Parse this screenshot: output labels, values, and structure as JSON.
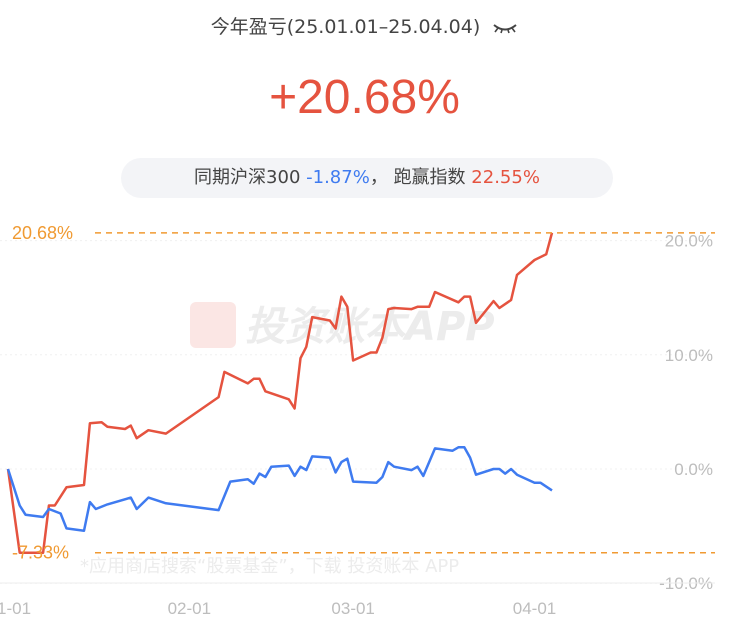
{
  "header": {
    "title": "今年盈亏(25.01.01–25.04.04)",
    "eye_icon": "eye-closed-icon",
    "return": "+20.68%"
  },
  "compare": {
    "label": "同期沪深300",
    "index_return": "-1.87%",
    "sep": "，",
    "beat_label": "跑赢指数",
    "beat_value": "22.55%"
  },
  "watermark": {
    "logo": "投资账本APP",
    "footer": "*应用商店搜索“股票基金”，下载 投资账本 APP"
  },
  "colors": {
    "portfolio": "#e5533f",
    "index": "#3f7bf0",
    "marker": "#f09a32",
    "axis_text": "#bdbdbd"
  },
  "chart_data": {
    "type": "line",
    "x_ticks": [
      "1-01",
      "02-01",
      "03-01",
      "04-01"
    ],
    "x_tick_dates": [
      "2025-01-01",
      "2025-02-01",
      "2025-03-01",
      "2025-04-01"
    ],
    "y_ticks": [
      "20.0%",
      "10.0%",
      "0.0%",
      "-10.0%"
    ],
    "y_tick_values": [
      20,
      10,
      0,
      -10
    ],
    "ylim": [
      -10,
      20
    ],
    "grid": true,
    "max_marker": {
      "label": "20.68%",
      "value": 20.68
    },
    "min_marker": {
      "label": "-7.33%",
      "value": -7.33
    },
    "series": [
      {
        "color": "#e5533f",
        "points": [
          [
            "2025-01-01",
            0
          ],
          [
            "2025-01-03",
            -7.33
          ],
          [
            "2025-01-07",
            -7.33
          ],
          [
            "2025-01-08",
            -3.2
          ],
          [
            "2025-01-09",
            -3.2
          ],
          [
            "2025-01-11",
            -1.6
          ],
          [
            "2025-01-14",
            -1.4
          ],
          [
            "2025-01-15",
            4.0
          ],
          [
            "2025-01-17",
            4.1
          ],
          [
            "2025-01-18",
            3.7
          ],
          [
            "2025-01-21",
            3.5
          ],
          [
            "2025-01-22",
            3.8
          ],
          [
            "2025-01-23",
            2.7
          ],
          [
            "2025-01-25",
            3.4
          ],
          [
            "2025-01-28",
            3.1
          ],
          [
            "2025-02-06",
            6.3
          ],
          [
            "2025-02-07",
            8.5
          ],
          [
            "2025-02-11",
            7.5
          ],
          [
            "2025-02-12",
            7.9
          ],
          [
            "2025-02-13",
            7.9
          ],
          [
            "2025-02-14",
            6.8
          ],
          [
            "2025-02-18",
            6.1
          ],
          [
            "2025-02-19",
            5.3
          ],
          [
            "2025-02-20",
            9.7
          ],
          [
            "2025-02-21",
            10.7
          ],
          [
            "2025-02-22",
            13.3
          ],
          [
            "2025-02-25",
            13.0
          ],
          [
            "2025-02-26",
            12.3
          ],
          [
            "2025-02-27",
            15.1
          ],
          [
            "2025-02-28",
            14.2
          ],
          [
            "2025-03-01",
            9.5
          ],
          [
            "2025-03-04",
            10.2
          ],
          [
            "2025-03-05",
            10.2
          ],
          [
            "2025-03-06",
            11.5
          ],
          [
            "2025-03-07",
            14.0
          ],
          [
            "2025-03-08",
            14.1
          ],
          [
            "2025-03-11",
            14.0
          ],
          [
            "2025-03-12",
            14.2
          ],
          [
            "2025-03-14",
            14.2
          ],
          [
            "2025-03-15",
            15.5
          ],
          [
            "2025-03-19",
            14.6
          ],
          [
            "2025-03-20",
            15.1
          ],
          [
            "2025-03-21",
            15.1
          ],
          [
            "2025-03-22",
            12.8
          ],
          [
            "2025-03-25",
            14.7
          ],
          [
            "2025-03-26",
            14.1
          ],
          [
            "2025-03-28",
            14.8
          ],
          [
            "2025-03-29",
            17.0
          ],
          [
            "2025-04-01",
            18.3
          ],
          [
            "2025-04-03",
            18.8
          ],
          [
            "2025-04-04",
            20.68
          ]
        ]
      },
      {
        "color": "#3f7bf0",
        "points": [
          [
            "2025-01-01",
            0
          ],
          [
            "2025-01-03",
            -3.2
          ],
          [
            "2025-01-04",
            -4.0
          ],
          [
            "2025-01-07",
            -4.2
          ],
          [
            "2025-01-08",
            -3.5
          ],
          [
            "2025-01-10",
            -3.9
          ],
          [
            "2025-01-11",
            -5.2
          ],
          [
            "2025-01-14",
            -5.4
          ],
          [
            "2025-01-15",
            -2.9
          ],
          [
            "2025-01-16",
            -3.5
          ],
          [
            "2025-01-18",
            -3.1
          ],
          [
            "2025-01-22",
            -2.5
          ],
          [
            "2025-01-23",
            -3.5
          ],
          [
            "2025-01-25",
            -2.5
          ],
          [
            "2025-01-28",
            -3.0
          ],
          [
            "2025-02-06",
            -3.6
          ],
          [
            "2025-02-08",
            -1.1
          ],
          [
            "2025-02-11",
            -0.9
          ],
          [
            "2025-02-12",
            -1.3
          ],
          [
            "2025-02-13",
            -0.4
          ],
          [
            "2025-02-14",
            -0.7
          ],
          [
            "2025-02-15",
            0.2
          ],
          [
            "2025-02-18",
            0.3
          ],
          [
            "2025-02-19",
            -0.6
          ],
          [
            "2025-02-20",
            0.2
          ],
          [
            "2025-02-21",
            -0.1
          ],
          [
            "2025-02-22",
            1.1
          ],
          [
            "2025-02-25",
            1.0
          ],
          [
            "2025-02-26",
            -0.3
          ],
          [
            "2025-02-27",
            0.6
          ],
          [
            "2025-02-28",
            0.9
          ],
          [
            "2025-03-01",
            -1.1
          ],
          [
            "2025-03-05",
            -1.2
          ],
          [
            "2025-03-06",
            -0.7
          ],
          [
            "2025-03-07",
            0.6
          ],
          [
            "2025-03-08",
            0.2
          ],
          [
            "2025-03-11",
            -0.1
          ],
          [
            "2025-03-12",
            0.2
          ],
          [
            "2025-03-13",
            -0.6
          ],
          [
            "2025-03-15",
            1.8
          ],
          [
            "2025-03-18",
            1.6
          ],
          [
            "2025-03-19",
            1.9
          ],
          [
            "2025-03-20",
            1.9
          ],
          [
            "2025-03-21",
            1.0
          ],
          [
            "2025-03-22",
            -0.5
          ],
          [
            "2025-03-25",
            0
          ],
          [
            "2025-03-26",
            0
          ],
          [
            "2025-03-27",
            -0.4
          ],
          [
            "2025-03-28",
            0
          ],
          [
            "2025-03-29",
            -0.5
          ],
          [
            "2025-04-01",
            -1.2
          ],
          [
            "2025-04-02",
            -1.2
          ],
          [
            "2025-04-04",
            -1.87
          ]
        ]
      }
    ]
  }
}
